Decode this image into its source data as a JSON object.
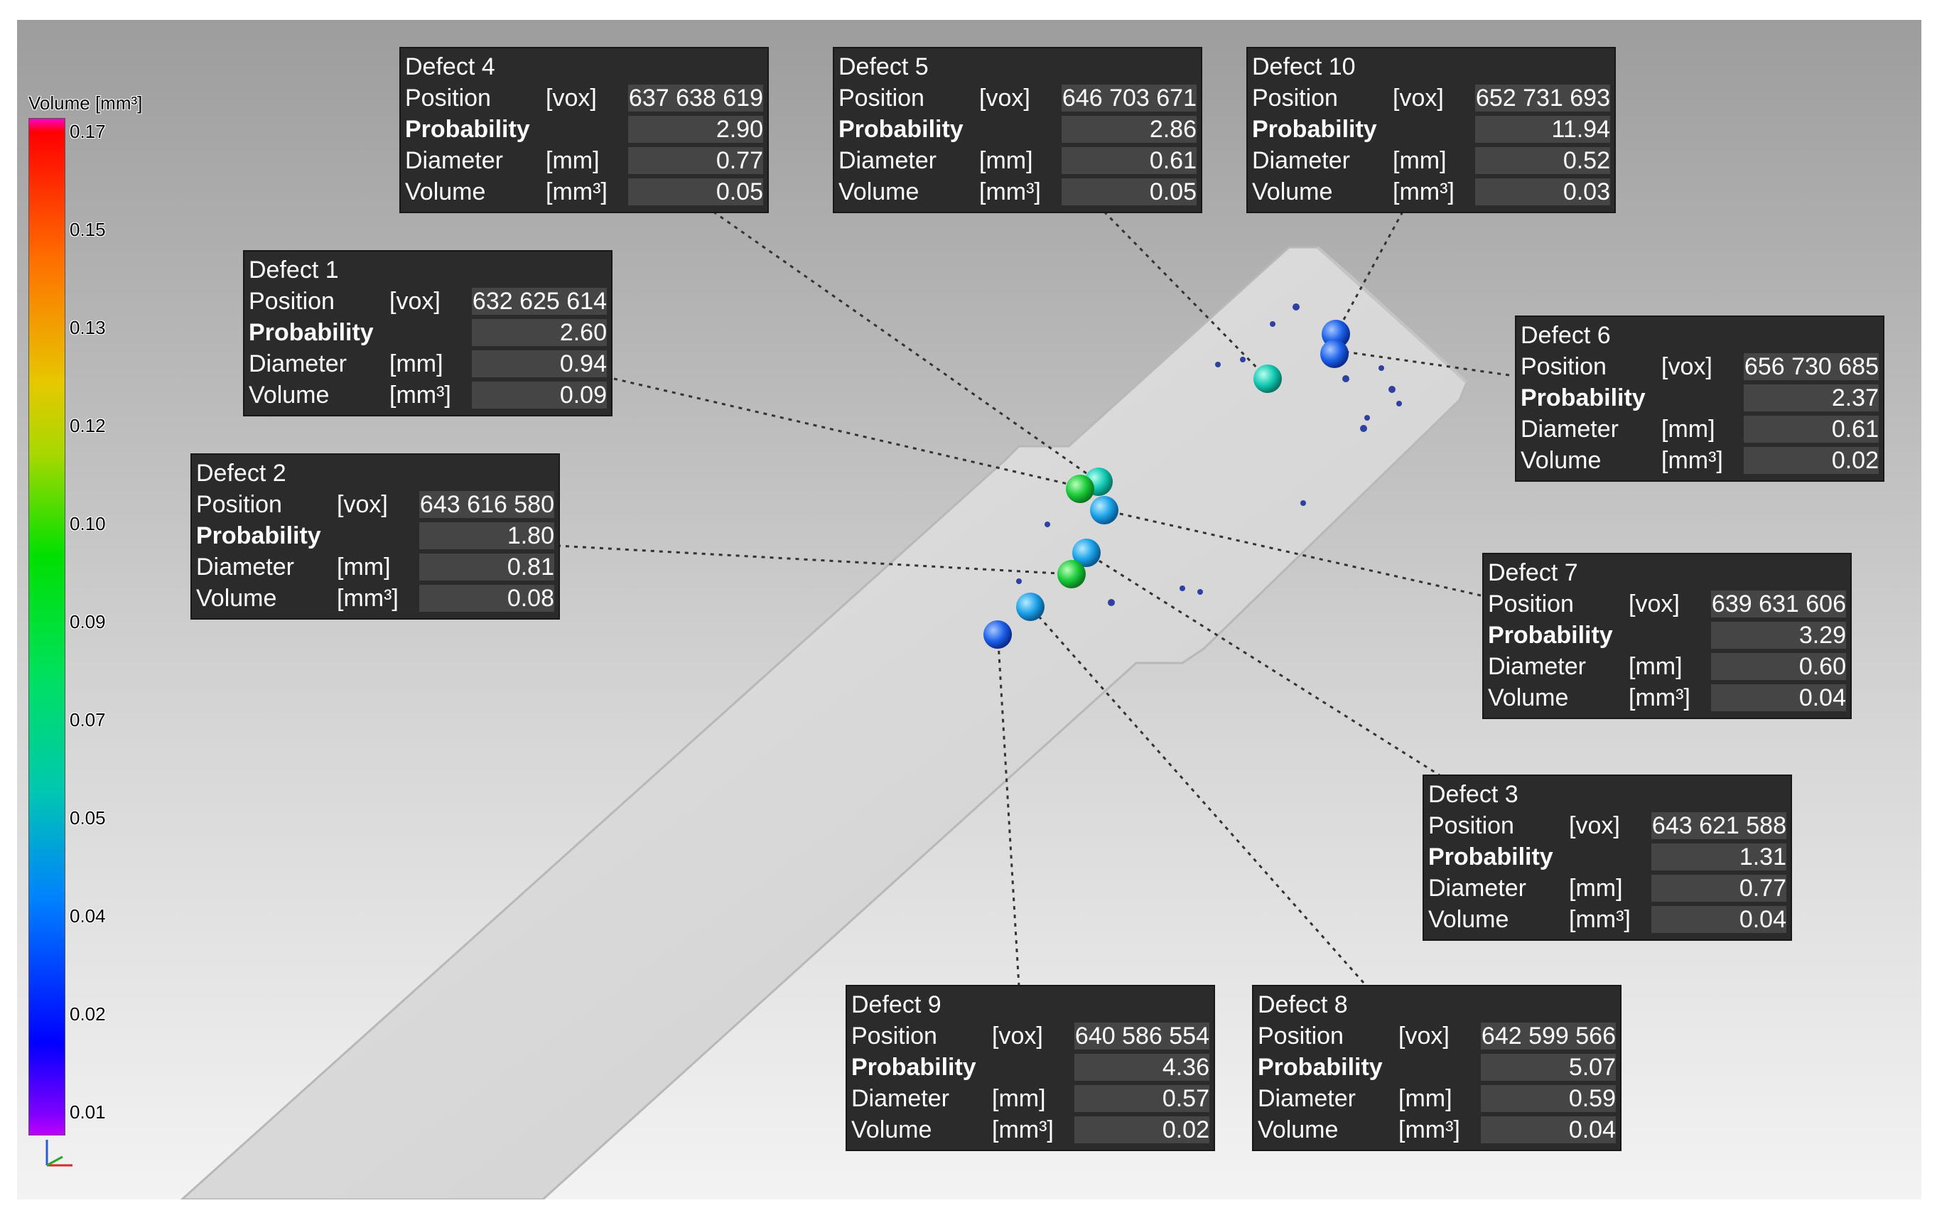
{
  "legend": {
    "title": "Volume [mm³]",
    "ticks": [
      "0.17",
      "0.15",
      "0.13",
      "0.12",
      "0.10",
      "0.09",
      "0.07",
      "0.05",
      "0.04",
      "0.02",
      "0.01"
    ]
  },
  "labels": {
    "position": "Position",
    "probability": "Probability",
    "diameter": "Diameter",
    "volume": "Volume",
    "unit_vox": "[vox]",
    "unit_mm": "[mm]",
    "unit_mm3": "[mm³]"
  },
  "defects": [
    {
      "title": "Defect 4",
      "position": "637 638 619",
      "probability": "2.90",
      "diameter": "0.77",
      "volume": "0.05"
    },
    {
      "title": "Defect 5",
      "position": "646 703 671",
      "probability": "2.86",
      "diameter": "0.61",
      "volume": "0.05"
    },
    {
      "title": "Defect 10",
      "position": "652 731 693",
      "probability": "11.94",
      "diameter": "0.52",
      "volume": "0.03"
    },
    {
      "title": "Defect 1",
      "position": "632 625 614",
      "probability": "2.60",
      "diameter": "0.94",
      "volume": "0.09"
    },
    {
      "title": "Defect 6",
      "position": "656 730 685",
      "probability": "2.37",
      "diameter": "0.61",
      "volume": "0.02"
    },
    {
      "title": "Defect 2",
      "position": "643 616 580",
      "probability": "1.80",
      "diameter": "0.81",
      "volume": "0.08"
    },
    {
      "title": "Defect 7",
      "position": "639 631 606",
      "probability": "3.29",
      "diameter": "0.60",
      "volume": "0.04"
    },
    {
      "title": "Defect 3",
      "position": "643 621 588",
      "probability": "1.31",
      "diameter": "0.77",
      "volume": "0.04"
    },
    {
      "title": "Defect 9",
      "position": "640 586 554",
      "probability": "4.36",
      "diameter": "0.57",
      "volume": "0.02"
    },
    {
      "title": "Defect 8",
      "position": "642 599 566",
      "probability": "5.07",
      "diameter": "0.59",
      "volume": "0.04"
    }
  ],
  "colors": {
    "box_bg": "#2b2b2b",
    "value_bg": "#454545",
    "specimen": "#dcdcdc"
  }
}
